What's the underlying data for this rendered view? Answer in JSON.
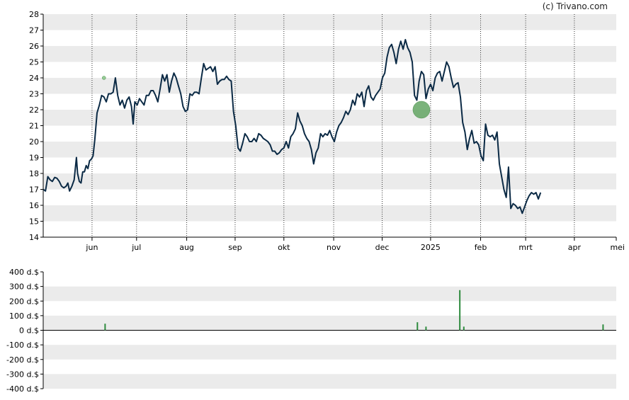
{
  "credit": "(c) Trivano.com",
  "chart_data": [
    {
      "type": "line",
      "name": "price",
      "ylim": [
        14,
        28
      ],
      "yticks": [
        14,
        15,
        16,
        17,
        18,
        19,
        20,
        21,
        22,
        23,
        24,
        25,
        26,
        27,
        28
      ],
      "grid": true,
      "line_color": "#0b2a45",
      "x_labels": [
        {
          "t": 0.0852,
          "label": "jun"
        },
        {
          "t": 0.1629,
          "label": "jul"
        },
        {
          "t": 0.2504,
          "label": "aug"
        },
        {
          "t": 0.3349,
          "label": "sep"
        },
        {
          "t": 0.42,
          "label": "okt"
        },
        {
          "t": 0.5069,
          "label": "nov"
        },
        {
          "t": 0.5915,
          "label": "dec"
        },
        {
          "t": 0.676,
          "label": "2025"
        },
        {
          "t": 0.7633,
          "label": "feb"
        },
        {
          "t": 0.8419,
          "label": "mrt"
        },
        {
          "t": 0.9269,
          "label": "apr"
        },
        {
          "t": 1.0,
          "label": "mei"
        }
      ],
      "points": [
        [
          0.0,
          17.0
        ],
        [
          0.004,
          16.9
        ],
        [
          0.008,
          17.8
        ],
        [
          0.012,
          17.6
        ],
        [
          0.016,
          17.5
        ],
        [
          0.02,
          17.75
        ],
        [
          0.024,
          17.7
        ],
        [
          0.028,
          17.5
        ],
        [
          0.032,
          17.2
        ],
        [
          0.036,
          17.1
        ],
        [
          0.04,
          17.2
        ],
        [
          0.043,
          17.4
        ],
        [
          0.046,
          16.9
        ],
        [
          0.05,
          17.2
        ],
        [
          0.054,
          17.6
        ],
        [
          0.058,
          19.0
        ],
        [
          0.06,
          18.0
        ],
        [
          0.063,
          17.5
        ],
        [
          0.066,
          17.4
        ],
        [
          0.069,
          18.1
        ],
        [
          0.072,
          18.1
        ],
        [
          0.075,
          18.5
        ],
        [
          0.078,
          18.3
        ],
        [
          0.081,
          18.8
        ],
        [
          0.084,
          18.9
        ],
        [
          0.087,
          19.1
        ],
        [
          0.09,
          20.1
        ],
        [
          0.094,
          21.8
        ],
        [
          0.098,
          22.3
        ],
        [
          0.102,
          22.9
        ],
        [
          0.106,
          22.8
        ],
        [
          0.11,
          22.5
        ],
        [
          0.114,
          23.0
        ],
        [
          0.118,
          23.0
        ],
        [
          0.122,
          23.1
        ],
        [
          0.126,
          24.0
        ],
        [
          0.13,
          22.9
        ],
        [
          0.134,
          22.3
        ],
        [
          0.138,
          22.6
        ],
        [
          0.142,
          22.1
        ],
        [
          0.146,
          22.6
        ],
        [
          0.15,
          22.8
        ],
        [
          0.154,
          22.2
        ],
        [
          0.157,
          21.1
        ],
        [
          0.16,
          22.5
        ],
        [
          0.164,
          22.3
        ],
        [
          0.168,
          22.7
        ],
        [
          0.172,
          22.5
        ],
        [
          0.176,
          22.3
        ],
        [
          0.18,
          22.9
        ],
        [
          0.184,
          22.9
        ],
        [
          0.188,
          23.2
        ],
        [
          0.192,
          23.2
        ],
        [
          0.196,
          22.9
        ],
        [
          0.2,
          22.5
        ],
        [
          0.204,
          23.3
        ],
        [
          0.208,
          24.2
        ],
        [
          0.212,
          23.8
        ],
        [
          0.216,
          24.2
        ],
        [
          0.22,
          23.1
        ],
        [
          0.224,
          23.8
        ],
        [
          0.228,
          24.3
        ],
        [
          0.232,
          24.0
        ],
        [
          0.236,
          23.5
        ],
        [
          0.24,
          23.0
        ],
        [
          0.244,
          22.2
        ],
        [
          0.248,
          21.9
        ],
        [
          0.252,
          22.0
        ],
        [
          0.256,
          23.0
        ],
        [
          0.26,
          22.9
        ],
        [
          0.264,
          23.1
        ],
        [
          0.268,
          23.1
        ],
        [
          0.272,
          23.0
        ],
        [
          0.276,
          24.0
        ],
        [
          0.28,
          24.9
        ],
        [
          0.284,
          24.5
        ],
        [
          0.288,
          24.6
        ],
        [
          0.292,
          24.7
        ],
        [
          0.296,
          24.4
        ],
        [
          0.3,
          24.7
        ],
        [
          0.304,
          23.6
        ],
        [
          0.308,
          23.8
        ],
        [
          0.312,
          23.9
        ],
        [
          0.316,
          23.9
        ],
        [
          0.32,
          24.1
        ],
        [
          0.324,
          23.9
        ],
        [
          0.328,
          23.8
        ],
        [
          0.332,
          21.9
        ],
        [
          0.336,
          21.0
        ],
        [
          0.34,
          19.6
        ],
        [
          0.344,
          19.4
        ],
        [
          0.348,
          19.9
        ],
        [
          0.352,
          20.5
        ],
        [
          0.356,
          20.3
        ],
        [
          0.36,
          20.0
        ],
        [
          0.364,
          20.0
        ],
        [
          0.368,
          20.2
        ],
        [
          0.372,
          20.0
        ],
        [
          0.376,
          20.5
        ],
        [
          0.38,
          20.4
        ],
        [
          0.384,
          20.2
        ],
        [
          0.388,
          20.1
        ],
        [
          0.392,
          20.0
        ],
        [
          0.396,
          19.8
        ],
        [
          0.4,
          19.4
        ],
        [
          0.404,
          19.4
        ],
        [
          0.408,
          19.2
        ],
        [
          0.412,
          19.3
        ],
        [
          0.416,
          19.5
        ],
        [
          0.42,
          19.6
        ],
        [
          0.424,
          20.0
        ],
        [
          0.428,
          19.6
        ],
        [
          0.432,
          20.3
        ],
        [
          0.436,
          20.5
        ],
        [
          0.44,
          20.8
        ],
        [
          0.444,
          21.8
        ],
        [
          0.448,
          21.3
        ],
        [
          0.452,
          21.0
        ],
        [
          0.456,
          20.5
        ],
        [
          0.46,
          20.2
        ],
        [
          0.464,
          20.0
        ],
        [
          0.468,
          19.5
        ],
        [
          0.472,
          18.6
        ],
        [
          0.476,
          19.3
        ],
        [
          0.48,
          19.6
        ],
        [
          0.484,
          20.5
        ],
        [
          0.488,
          20.3
        ],
        [
          0.492,
          20.5
        ],
        [
          0.496,
          20.4
        ],
        [
          0.5,
          20.7
        ],
        [
          0.504,
          20.3
        ],
        [
          0.508,
          20.0
        ],
        [
          0.512,
          20.6
        ],
        [
          0.516,
          21.0
        ],
        [
          0.52,
          21.2
        ],
        [
          0.524,
          21.5
        ],
        [
          0.528,
          21.9
        ],
        [
          0.532,
          21.7
        ],
        [
          0.536,
          22.0
        ],
        [
          0.54,
          22.6
        ],
        [
          0.544,
          22.3
        ],
        [
          0.548,
          23.0
        ],
        [
          0.552,
          22.8
        ],
        [
          0.556,
          23.1
        ],
        [
          0.56,
          22.2
        ],
        [
          0.564,
          23.2
        ],
        [
          0.568,
          23.5
        ],
        [
          0.572,
          22.8
        ],
        [
          0.576,
          22.6
        ],
        [
          0.58,
          22.9
        ],
        [
          0.584,
          23.1
        ],
        [
          0.588,
          23.3
        ],
        [
          0.592,
          24.0
        ],
        [
          0.596,
          24.3
        ],
        [
          0.6,
          25.3
        ],
        [
          0.604,
          25.9
        ],
        [
          0.608,
          26.1
        ],
        [
          0.612,
          25.6
        ],
        [
          0.616,
          24.9
        ],
        [
          0.62,
          25.8
        ],
        [
          0.624,
          26.3
        ],
        [
          0.628,
          25.8
        ],
        [
          0.632,
          26.4
        ],
        [
          0.636,
          25.9
        ],
        [
          0.64,
          25.6
        ],
        [
          0.644,
          25.0
        ],
        [
          0.648,
          22.9
        ],
        [
          0.652,
          22.6
        ],
        [
          0.656,
          23.8
        ],
        [
          0.66,
          24.4
        ],
        [
          0.664,
          24.2
        ],
        [
          0.668,
          22.7
        ],
        [
          0.672,
          23.3
        ],
        [
          0.676,
          23.6
        ],
        [
          0.68,
          23.2
        ],
        [
          0.684,
          24.0
        ],
        [
          0.688,
          24.3
        ],
        [
          0.692,
          24.4
        ],
        [
          0.696,
          23.8
        ],
        [
          0.7,
          24.4
        ],
        [
          0.704,
          25.0
        ],
        [
          0.708,
          24.7
        ],
        [
          0.712,
          24.0
        ],
        [
          0.716,
          23.4
        ],
        [
          0.72,
          23.6
        ],
        [
          0.724,
          23.7
        ],
        [
          0.728,
          22.8
        ],
        [
          0.732,
          21.2
        ],
        [
          0.736,
          20.6
        ],
        [
          0.74,
          19.5
        ],
        [
          0.744,
          20.2
        ],
        [
          0.748,
          20.7
        ],
        [
          0.752,
          19.9
        ],
        [
          0.756,
          20.0
        ],
        [
          0.76,
          19.8
        ],
        [
          0.764,
          19.1
        ],
        [
          0.768,
          18.8
        ],
        [
          0.772,
          21.1
        ],
        [
          0.776,
          20.4
        ],
        [
          0.78,
          20.3
        ],
        [
          0.784,
          20.4
        ],
        [
          0.788,
          20.1
        ],
        [
          0.792,
          20.6
        ],
        [
          0.796,
          18.6
        ],
        [
          0.8,
          17.8
        ],
        [
          0.804,
          17.0
        ],
        [
          0.808,
          16.5
        ],
        [
          0.812,
          18.4
        ],
        [
          0.816,
          15.8
        ],
        [
          0.82,
          16.1
        ],
        [
          0.824,
          16.0
        ],
        [
          0.828,
          15.8
        ],
        [
          0.832,
          15.9
        ],
        [
          0.836,
          15.5
        ],
        [
          0.84,
          15.9
        ],
        [
          0.844,
          16.3
        ],
        [
          0.848,
          16.6
        ],
        [
          0.852,
          16.8
        ],
        [
          0.856,
          16.7
        ],
        [
          0.86,
          16.8
        ],
        [
          0.864,
          16.4
        ],
        [
          0.868,
          16.8
        ]
      ],
      "markers": [
        {
          "t": 0.106,
          "y": 24.0,
          "r": 2.5,
          "color": "#7cbf7c"
        },
        {
          "t": 0.66,
          "y": 22.0,
          "r": 12.0,
          "color": "#5aa05a"
        }
      ]
    },
    {
      "type": "bar",
      "name": "dividends",
      "ylim": [
        -400,
        400
      ],
      "yticks": [
        400,
        300,
        200,
        100,
        0,
        -100,
        -200,
        -300,
        -400
      ],
      "ytick_labels": [
        "400 d.$",
        "300 d.$",
        "200 d.$",
        "100 d.$",
        "0 d.$",
        "-100 d.$",
        "-200 d.$",
        "-300 d.$",
        "-400 d.$"
      ],
      "grid": true,
      "bar_color": "#2e8b3e",
      "bars": [
        {
          "t": 0.108,
          "value": 45
        },
        {
          "t": 0.653,
          "value": 55
        },
        {
          "t": 0.668,
          "value": 25
        },
        {
          "t": 0.727,
          "value": 275
        },
        {
          "t": 0.734,
          "value": 25
        },
        {
          "t": 0.977,
          "value": 40
        }
      ]
    }
  ]
}
